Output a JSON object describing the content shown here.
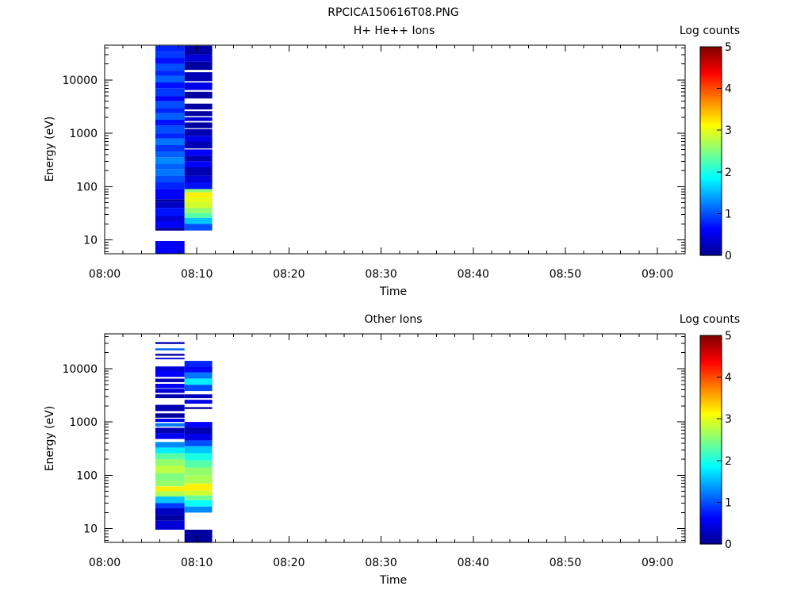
{
  "figure_title": "RPCICA150616T08.PNG",
  "colormap": [
    "#00008f",
    "#0000ff",
    "#0080ff",
    "#00ffff",
    "#80ff80",
    "#ffff00",
    "#ff8000",
    "#ff0000",
    "#800000"
  ],
  "chart_data": [
    {
      "type": "heatmap",
      "title": "H+ He++ Ions",
      "xlabel": "Time",
      "ylabel": "Energy (eV)",
      "x_ticks": [
        "08:00",
        "08:10",
        "08:20",
        "08:30",
        "08:40",
        "08:50",
        "09:00"
      ],
      "y_ticks": [
        "10",
        "100",
        "1000",
        "10000"
      ],
      "xlim": [
        "08:00",
        "09:03"
      ],
      "ylim": [
        5.5,
        45000
      ],
      "y_scale": "log",
      "colorbar": {
        "label": "Log counts",
        "ticks": [
          "0",
          "1",
          "2",
          "3",
          "4",
          "5"
        ],
        "range": [
          0,
          5
        ]
      },
      "columns": [
        {
          "t_start": "08:05:30",
          "t_end": "08:08:40",
          "cells": [
            {
              "e_low": 5.5,
              "e_high": 9.5,
              "v": 0.6
            },
            {
              "e_low": 15,
              "e_high": 17,
              "v": 0.1
            },
            {
              "e_low": 17,
              "e_high": 22,
              "v": 0.6
            },
            {
              "e_low": 22,
              "e_high": 28,
              "v": 0.4
            },
            {
              "e_low": 28,
              "e_high": 40,
              "v": 0.7
            },
            {
              "e_low": 40,
              "e_high": 52,
              "v": 0.3
            },
            {
              "e_low": 52,
              "e_high": 58,
              "v": 0.1
            },
            {
              "e_low": 58,
              "e_high": 90,
              "v": 0.6
            },
            {
              "e_low": 90,
              "e_high": 120,
              "v": 0.8
            },
            {
              "e_low": 120,
              "e_high": 160,
              "v": 1.0
            },
            {
              "e_low": 160,
              "e_high": 210,
              "v": 1.2
            },
            {
              "e_low": 210,
              "e_high": 270,
              "v": 1.1
            },
            {
              "e_low": 270,
              "e_high": 350,
              "v": 1.3
            },
            {
              "e_low": 350,
              "e_high": 450,
              "v": 1.1
            },
            {
              "e_low": 450,
              "e_high": 600,
              "v": 0.9
            },
            {
              "e_low": 600,
              "e_high": 800,
              "v": 1.2
            },
            {
              "e_low": 800,
              "e_high": 1000,
              "v": 0.8
            },
            {
              "e_low": 1000,
              "e_high": 1400,
              "v": 1.0
            },
            {
              "e_low": 1400,
              "e_high": 1800,
              "v": 0.7
            },
            {
              "e_low": 1800,
              "e_high": 2400,
              "v": 1.1
            },
            {
              "e_low": 2400,
              "e_high": 3000,
              "v": 0.8
            },
            {
              "e_low": 3000,
              "e_high": 4000,
              "v": 1.0
            },
            {
              "e_low": 4000,
              "e_high": 5000,
              "v": 0.6
            },
            {
              "e_low": 5000,
              "e_high": 7000,
              "v": 0.9
            },
            {
              "e_low": 7000,
              "e_high": 9000,
              "v": 0.7
            },
            {
              "e_low": 9000,
              "e_high": 12000,
              "v": 1.1
            },
            {
              "e_low": 12000,
              "e_high": 15000,
              "v": 0.8
            },
            {
              "e_low": 15000,
              "e_high": 20000,
              "v": 1.0
            },
            {
              "e_low": 20000,
              "e_high": 26000,
              "v": 0.7
            },
            {
              "e_low": 26000,
              "e_high": 34000,
              "v": 0.9
            },
            {
              "e_low": 34000,
              "e_high": 44000,
              "v": 0.8
            }
          ]
        },
        {
          "t_start": "08:08:40",
          "t_end": "08:11:40",
          "cells": [
            {
              "e_low": 15,
              "e_high": 20,
              "v": 1.0
            },
            {
              "e_low": 20,
              "e_high": 26,
              "v": 1.6
            },
            {
              "e_low": 26,
              "e_high": 32,
              "v": 2.3
            },
            {
              "e_low": 32,
              "e_high": 40,
              "v": 2.6
            },
            {
              "e_low": 40,
              "e_high": 52,
              "v": 2.9
            },
            {
              "e_low": 52,
              "e_high": 64,
              "v": 3.0
            },
            {
              "e_low": 64,
              "e_high": 78,
              "v": 3.2
            },
            {
              "e_low": 78,
              "e_high": 90,
              "v": 2.6
            },
            {
              "e_low": 90,
              "e_high": 120,
              "v": 0.7
            },
            {
              "e_low": 120,
              "e_high": 160,
              "v": 0.4
            },
            {
              "e_low": 160,
              "e_high": 230,
              "v": 0.2
            },
            {
              "e_low": 230,
              "e_high": 300,
              "v": 0.6
            },
            {
              "e_low": 300,
              "e_high": 380,
              "v": 0.2
            },
            {
              "e_low": 380,
              "e_high": 500,
              "v": 0.6
            },
            {
              "e_low": 520,
              "e_high": 700,
              "v": 0.2
            },
            {
              "e_low": 700,
              "e_high": 900,
              "v": 0.5
            },
            {
              "e_low": 900,
              "e_high": 1200,
              "v": 0.2
            },
            {
              "e_low": 1250,
              "e_high": 1600,
              "v": 0.1
            },
            {
              "e_low": 1700,
              "e_high": 2000,
              "v": 0.4
            },
            {
              "e_low": 2100,
              "e_high": 2600,
              "v": 0.1
            },
            {
              "e_low": 2800,
              "e_high": 3600,
              "v": 0.1
            },
            {
              "e_low": 4500,
              "e_high": 6000,
              "v": 0.1
            },
            {
              "e_low": 6500,
              "e_high": 9000,
              "v": 0.5
            },
            {
              "e_low": 9500,
              "e_high": 14000,
              "v": 0.2
            },
            {
              "e_low": 15500,
              "e_high": 22000,
              "v": 0.1
            },
            {
              "e_low": 22000,
              "e_high": 30000,
              "v": 0.4
            },
            {
              "e_low": 30000,
              "e_high": 44000,
              "v": 0.1
            }
          ]
        }
      ]
    },
    {
      "type": "heatmap",
      "title": "Other Ions",
      "xlabel": "Time",
      "ylabel": "Energy (eV)",
      "x_ticks": [
        "08:00",
        "08:10",
        "08:20",
        "08:30",
        "08:40",
        "08:50",
        "09:00"
      ],
      "y_ticks": [
        "10",
        "100",
        "1000",
        "10000"
      ],
      "xlim": [
        "08:00",
        "09:03"
      ],
      "ylim": [
        5.5,
        45000
      ],
      "y_scale": "log",
      "colorbar": {
        "label": "Log counts",
        "ticks": [
          "0",
          "1",
          "2",
          "3",
          "4",
          "5"
        ],
        "range": [
          0,
          5
        ]
      },
      "columns": [
        {
          "t_start": "08:05:30",
          "t_end": "08:08:40",
          "cells": [
            {
              "e_low": 9.5,
              "e_high": 14,
              "v": 0.4
            },
            {
              "e_low": 14,
              "e_high": 18,
              "v": 0.1
            },
            {
              "e_low": 18,
              "e_high": 24,
              "v": 0.3
            },
            {
              "e_low": 24,
              "e_high": 30,
              "v": 0.9
            },
            {
              "e_low": 30,
              "e_high": 40,
              "v": 1.6
            },
            {
              "e_low": 40,
              "e_high": 50,
              "v": 2.7
            },
            {
              "e_low": 50,
              "e_high": 62,
              "v": 3.2
            },
            {
              "e_low": 62,
              "e_high": 80,
              "v": 2.6
            },
            {
              "e_low": 80,
              "e_high": 110,
              "v": 2.5
            },
            {
              "e_low": 110,
              "e_high": 150,
              "v": 2.8
            },
            {
              "e_low": 150,
              "e_high": 200,
              "v": 2.6
            },
            {
              "e_low": 200,
              "e_high": 260,
              "v": 2.3
            },
            {
              "e_low": 260,
              "e_high": 330,
              "v": 1.8
            },
            {
              "e_low": 330,
              "e_high": 420,
              "v": 1.3
            },
            {
              "e_low": 480,
              "e_high": 620,
              "v": 0.6
            },
            {
              "e_low": 620,
              "e_high": 780,
              "v": 0.2
            },
            {
              "e_low": 820,
              "e_high": 950,
              "v": 1.2
            },
            {
              "e_low": 1000,
              "e_high": 1150,
              "v": 0.6
            },
            {
              "e_low": 1200,
              "e_high": 1450,
              "v": 0.1
            },
            {
              "e_low": 1600,
              "e_high": 2100,
              "v": 0.2
            },
            {
              "e_low": 2800,
              "e_high": 3300,
              "v": 0.2
            },
            {
              "e_low": 3500,
              "e_high": 4200,
              "v": 0.4
            },
            {
              "e_low": 4300,
              "e_high": 5200,
              "v": 0.6
            },
            {
              "e_low": 5600,
              "e_high": 6500,
              "v": 0.2
            },
            {
              "e_low": 7000,
              "e_high": 9000,
              "v": 0.6
            },
            {
              "e_low": 9000,
              "e_high": 11000,
              "v": 0.4
            },
            {
              "e_low": 15000,
              "e_high": 16000,
              "v": 0.4
            },
            {
              "e_low": 17500,
              "e_high": 19000,
              "v": 0.1
            },
            {
              "e_low": 22000,
              "e_high": 24000,
              "v": 1.1
            },
            {
              "e_low": 29000,
              "e_high": 31500,
              "v": 0.2
            }
          ]
        },
        {
          "t_start": "08:08:40",
          "t_end": "08:11:40",
          "cells": [
            {
              "e_low": 5.5,
              "e_high": 9.5,
              "v": 0.1
            },
            {
              "e_low": 20,
              "e_high": 26,
              "v": 1.3
            },
            {
              "e_low": 26,
              "e_high": 34,
              "v": 1.9
            },
            {
              "e_low": 34,
              "e_high": 42,
              "v": 2.4
            },
            {
              "e_low": 42,
              "e_high": 52,
              "v": 2.9
            },
            {
              "e_low": 52,
              "e_high": 70,
              "v": 3.2
            },
            {
              "e_low": 70,
              "e_high": 100,
              "v": 2.7
            },
            {
              "e_low": 100,
              "e_high": 140,
              "v": 2.6
            },
            {
              "e_low": 140,
              "e_high": 190,
              "v": 2.3
            },
            {
              "e_low": 190,
              "e_high": 260,
              "v": 2.0
            },
            {
              "e_low": 260,
              "e_high": 350,
              "v": 1.6
            },
            {
              "e_low": 350,
              "e_high": 450,
              "v": 1.0
            },
            {
              "e_low": 450,
              "e_high": 600,
              "v": 0.5
            },
            {
              "e_low": 600,
              "e_high": 800,
              "v": 0.2
            },
            {
              "e_low": 800,
              "e_high": 1000,
              "v": 0.6
            },
            {
              "e_low": 1750,
              "e_high": 1900,
              "v": 0.1
            },
            {
              "e_low": 2200,
              "e_high": 2600,
              "v": 0.5
            },
            {
              "e_low": 2800,
              "e_high": 3300,
              "v": 0.3
            },
            {
              "e_low": 3800,
              "e_high": 5000,
              "v": 1.0
            },
            {
              "e_low": 5000,
              "e_high": 6500,
              "v": 1.8
            },
            {
              "e_low": 6500,
              "e_high": 8500,
              "v": 1.2
            },
            {
              "e_low": 8500,
              "e_high": 11000,
              "v": 0.6
            },
            {
              "e_low": 11000,
              "e_high": 14000,
              "v": 0.8
            }
          ]
        }
      ]
    }
  ]
}
